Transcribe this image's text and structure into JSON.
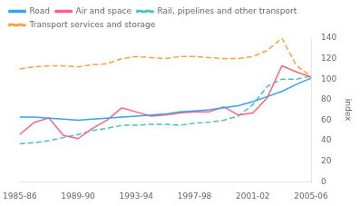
{
  "chart_data": {
    "type": "line",
    "categories": [
      "1985-86",
      null,
      null,
      null,
      "1989-90",
      null,
      null,
      null,
      "1993-94",
      null,
      null,
      null,
      "1997-98",
      null,
      null,
      null,
      "2001-02",
      null,
      null,
      null,
      "2005-06"
    ],
    "series": [
      {
        "name": "Road",
        "line_style": "solid",
        "values": [
          63,
          63,
          62,
          61,
          60,
          61,
          62,
          63,
          64,
          65,
          66,
          68,
          69,
          70,
          72,
          74,
          78,
          83,
          88,
          95,
          101
        ]
      },
      {
        "name": "Air and space",
        "line_style": "solid",
        "values": [
          46,
          58,
          62,
          45,
          42,
          52,
          60,
          72,
          68,
          64,
          65,
          67,
          68,
          68,
          73,
          65,
          67,
          82,
          113,
          107,
          102
        ]
      },
      {
        "name": "Rail, pipelines and other transport",
        "line_style": "dashed",
        "values": [
          37,
          38,
          40,
          43,
          46,
          50,
          52,
          55,
          55,
          56,
          56,
          55,
          57,
          58,
          60,
          64,
          75,
          93,
          100,
          100,
          103
        ]
      },
      {
        "name": "Transport services and storage",
        "line_style": "dashed",
        "values": [
          110,
          112,
          113,
          113,
          112,
          114,
          115,
          120,
          122,
          121,
          120,
          122,
          122,
          121,
          120,
          120,
          122,
          128,
          140,
          113,
          103
        ]
      }
    ],
    "ylabel": "index",
    "ylim": [
      0,
      140
    ],
    "yticks": [
      0,
      20,
      40,
      60,
      80,
      100,
      120,
      140
    ],
    "grid": false,
    "legend": "upper left"
  }
}
